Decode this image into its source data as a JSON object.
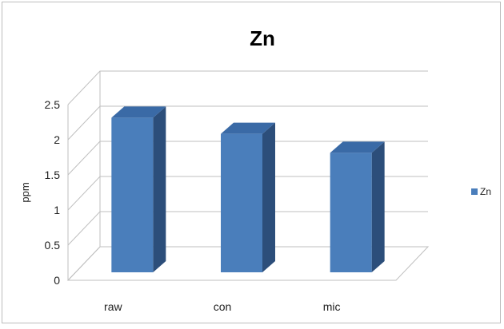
{
  "chart_data": {
    "type": "bar",
    "title": "Zn",
    "xlabel": "",
    "ylabel": "ppm",
    "categories": [
      "raw",
      "con",
      "mic"
    ],
    "series": [
      {
        "name": "Zn",
        "values": [
          2.2,
          1.97,
          1.7
        ],
        "color": "#4a7ebb"
      }
    ],
    "ylim": [
      0,
      2.5
    ],
    "yticks": [
      "0",
      "0.5",
      "1",
      "1.5",
      "2",
      "2.5"
    ],
    "grid": true,
    "legend": "right",
    "style": "3d-column"
  }
}
